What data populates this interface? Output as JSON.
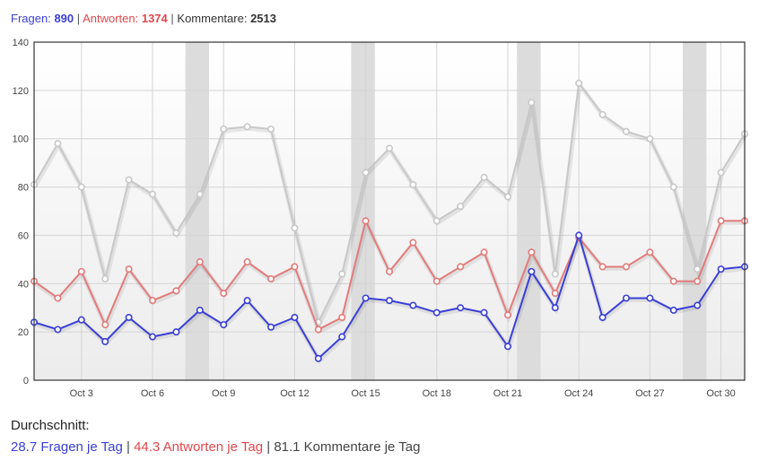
{
  "header": {
    "questions_label": "Fragen:",
    "questions_count": "890",
    "answers_label": "Antworten:",
    "answers_count": "1374",
    "comments_label": "Kommentare:",
    "comments_count": "2513",
    "separator": "|"
  },
  "footer": {
    "heading": "Durchschnitt:",
    "questions_avg": "28.7 Fragen je Tag",
    "answers_avg": "44.3 Antworten je Tag",
    "comments_avg": "81.1 Kommentare je Tag",
    "separator": "|"
  },
  "chart_data": {
    "type": "line",
    "x": [
      "Oct 1",
      "Oct 2",
      "Oct 3",
      "Oct 4",
      "Oct 5",
      "Oct 6",
      "Oct 7",
      "Oct 8",
      "Oct 9",
      "Oct 10",
      "Oct 11",
      "Oct 12",
      "Oct 13",
      "Oct 14",
      "Oct 15",
      "Oct 16",
      "Oct 17",
      "Oct 18",
      "Oct 19",
      "Oct 20",
      "Oct 21",
      "Oct 22",
      "Oct 23",
      "Oct 24",
      "Oct 25",
      "Oct 26",
      "Oct 27",
      "Oct 28",
      "Oct 29",
      "Oct 30",
      "Oct 31"
    ],
    "x_tick_labels": [
      "Oct 3",
      "Oct 6",
      "Oct 9",
      "Oct 12",
      "Oct 15",
      "Oct 18",
      "Oct 21",
      "Oct 24",
      "Oct 27",
      "Oct 30"
    ],
    "ylim": [
      0,
      140
    ],
    "y_ticks": [
      0,
      20,
      40,
      60,
      80,
      100,
      120,
      140
    ],
    "grid": true,
    "weekend_shading": [
      [
        "Oct 7",
        "Oct 8"
      ],
      [
        "Oct 14",
        "Oct 15"
      ],
      [
        "Oct 21",
        "Oct 22"
      ],
      [
        "Oct 28",
        "Oct 29"
      ]
    ],
    "series": [
      {
        "name": "Kommentare",
        "color": "#c8c8c8",
        "values": [
          81,
          98,
          80,
          42,
          83,
          77,
          61,
          77,
          104,
          105,
          104,
          63,
          24,
          44,
          86,
          96,
          81,
          66,
          72,
          84,
          76,
          115,
          44,
          123,
          110,
          103,
          100,
          80,
          46,
          86,
          102
        ]
      },
      {
        "name": "Antworten",
        "color": "#e37b7b",
        "values": [
          41,
          34,
          45,
          23,
          46,
          33,
          37,
          49,
          36,
          49,
          42,
          47,
          21,
          26,
          66,
          45,
          57,
          41,
          47,
          53,
          27,
          53,
          36,
          59,
          47,
          47,
          53,
          41,
          41,
          66,
          66
        ]
      },
      {
        "name": "Fragen",
        "color": "#3a3fd6",
        "values": [
          24,
          21,
          25,
          16,
          26,
          18,
          20,
          29,
          23,
          33,
          22,
          26,
          9,
          18,
          34,
          33,
          31,
          28,
          30,
          28,
          14,
          45,
          30,
          60,
          26,
          34,
          34,
          29,
          31,
          46,
          47
        ]
      }
    ]
  }
}
